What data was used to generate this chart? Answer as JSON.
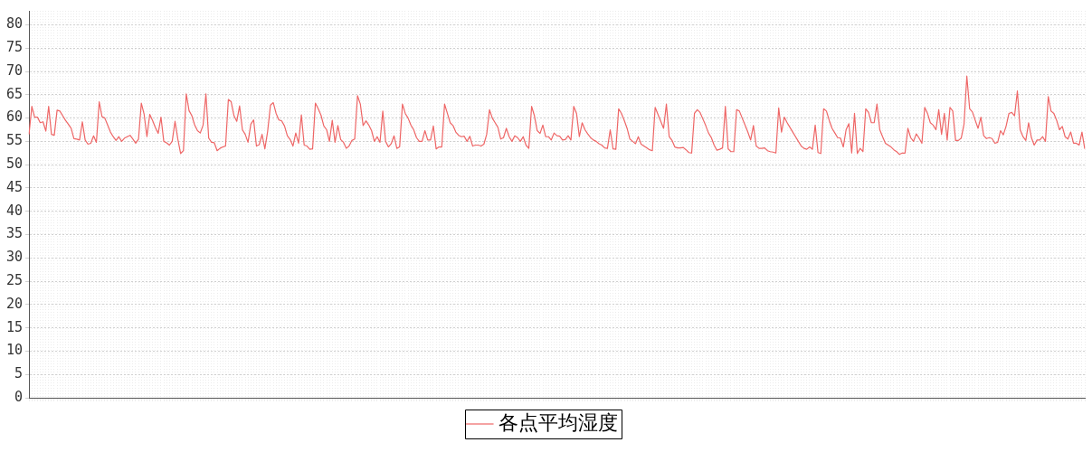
{
  "chart_data": {
    "type": "line",
    "tick_labels": "y",
    "grid": true,
    "legend": "bottom",
    "marker": "none",
    "line_style": "solid",
    "ylim": [
      0,
      83
    ],
    "yticks": [
      0,
      5,
      10,
      15,
      20,
      25,
      30,
      35,
      40,
      45,
      50,
      55,
      60,
      65,
      70,
      75,
      80
    ],
    "categories": [
      null,
      null,
      null,
      null,
      null,
      null,
      null,
      null,
      null,
      null,
      null,
      null,
      null,
      null,
      null,
      null,
      null,
      null,
      null,
      null,
      null,
      null,
      null,
      null,
      null,
      null,
      null,
      null,
      null,
      null,
      null,
      null,
      null,
      null,
      null,
      null,
      null,
      null,
      null,
      null,
      null,
      null,
      null,
      null,
      null,
      null,
      null,
      null,
      null,
      null,
      null,
      null,
      null,
      null,
      null,
      null,
      null,
      null,
      null,
      null,
      null,
      null,
      null,
      null,
      null,
      null,
      null,
      null,
      null,
      null,
      null,
      null,
      null,
      null,
      null,
      null,
      null,
      null,
      null,
      null,
      null,
      null,
      null,
      null,
      null,
      null,
      null,
      null,
      null,
      null,
      null,
      null,
      null,
      null,
      null,
      null,
      null,
      null,
      null,
      null,
      null,
      null,
      null,
      null,
      null,
      null,
      null,
      null,
      null,
      null,
      null,
      null,
      null,
      null,
      null,
      null,
      null,
      null,
      null,
      null,
      null,
      null,
      null,
      null,
      null,
      null,
      null,
      null,
      null,
      null,
      null,
      null,
      null,
      null,
      null,
      null,
      null,
      null,
      null,
      null,
      null,
      null,
      null,
      null,
      null,
      null,
      null,
      null,
      null,
      null,
      null,
      null,
      null,
      null,
      null,
      null,
      null,
      null,
      null,
      null,
      null,
      null,
      null,
      null,
      null,
      null,
      null,
      null,
      null,
      null,
      null,
      null,
      null,
      null,
      null,
      null,
      null,
      null,
      null,
      null,
      null,
      null,
      null,
      null,
      null,
      null,
      null,
      null,
      null,
      null,
      null,
      null,
      null,
      null,
      null,
      null,
      null,
      null,
      null,
      null,
      null,
      null,
      null,
      null,
      null,
      null,
      null,
      null,
      null,
      null,
      null,
      null,
      null,
      null,
      null,
      null,
      null,
      null,
      null,
      null,
      null,
      null,
      null,
      null,
      null,
      null,
      null,
      null,
      null,
      null,
      null,
      null,
      null,
      null,
      null,
      null,
      null,
      null,
      null,
      null,
      null,
      null,
      null,
      null,
      null,
      null,
      null,
      null,
      null,
      null,
      null,
      null,
      null,
      null,
      null,
      null,
      null,
      null,
      null,
      null,
      null,
      null,
      null,
      null,
      null,
      null,
      null,
      null,
      null,
      null,
      null,
      null,
      null,
      null,
      null,
      null,
      null,
      null,
      null,
      null,
      null,
      null,
      null,
      null,
      null,
      null,
      null,
      null,
      null,
      null,
      null,
      null,
      null,
      null,
      null,
      null,
      null,
      null,
      null,
      null,
      null,
      null,
      null,
      null,
      null,
      null,
      null,
      null,
      null,
      null,
      null,
      null,
      null,
      null,
      null,
      null,
      null,
      null,
      null,
      null,
      null,
      null,
      null,
      null,
      null,
      null,
      null,
      null,
      null,
      null,
      null,
      null,
      null,
      null,
      null,
      null,
      null,
      null,
      null,
      null,
      null,
      null,
      null,
      null,
      null,
      null,
      null,
      null,
      null,
      null,
      null,
      null,
      null,
      null,
      null,
      null,
      null,
      null,
      null,
      null,
      null,
      null,
      null,
      null,
      null,
      null,
      null,
      null,
      null,
      null,
      null,
      null,
      null,
      null,
      null,
      null,
      null
    ],
    "series": [
      {
        "name": "各点平均湿度",
        "color": "#ee6666",
        "values": [
          56.5,
          62.5,
          60.2,
          60.2,
          59,
          59.2,
          57.2,
          62.5,
          56.5,
          56.3,
          61.7,
          61.5,
          60.5,
          59.5,
          58.7,
          57.8,
          55.6,
          55.5,
          55.3,
          59.2,
          55.3,
          54.4,
          54.6,
          56.2,
          54.8,
          63.5,
          60.3,
          60,
          58.5,
          57,
          56,
          55.2,
          56,
          55,
          55.7,
          56,
          56.3,
          55.5,
          54.6,
          55.5,
          63.2,
          60.8,
          56,
          60.8,
          59.5,
          58,
          56.7,
          60.2,
          55,
          54.7,
          54.2,
          55,
          59.3,
          55.5,
          52.4,
          53,
          65.2,
          61.6,
          60.5,
          58.5,
          57.3,
          56.8,
          58.5,
          65.2,
          55.7,
          54.8,
          54.7,
          53,
          53.5,
          53.8,
          54,
          64,
          63.5,
          60.5,
          59.3,
          62.6,
          57.5,
          56.5,
          54.8,
          58.7,
          59.6,
          54,
          54.3,
          56.5,
          53.4,
          57.2,
          62.8,
          63.3,
          61,
          59.6,
          59.4,
          58.3,
          56.2,
          55.4,
          54,
          56.8,
          54.6,
          60.7,
          54.2,
          54,
          53.3,
          53.4,
          63.2,
          62,
          60.6,
          58.3,
          57.5,
          55,
          59.5,
          54.8,
          58.4,
          55.4,
          54.8,
          53.5,
          54,
          55.2,
          55.5,
          64.8,
          63,
          58.4,
          59.4,
          58.5,
          57.3,
          55,
          56,
          54.8,
          61.5,
          55,
          53.8,
          54.5,
          56.2,
          53.5,
          53.8,
          63,
          61,
          60,
          58.5,
          57.5,
          55.8,
          55,
          55,
          57.3,
          55.3,
          55.3,
          58.3,
          53.4,
          53.8,
          53.8,
          63,
          61,
          59,
          58.4,
          57,
          56.3,
          56,
          56.1,
          55,
          56.1,
          54,
          54.2,
          54.2,
          54,
          54.4,
          56.5,
          61.8,
          60,
          59,
          58,
          55.5,
          55.8,
          57.8,
          56,
          55,
          56.2,
          55.8,
          55,
          56,
          54.2,
          53.5,
          62.5,
          60.5,
          57.3,
          56.7,
          58.5,
          56,
          56,
          55.3,
          56.8,
          56.2,
          56.1,
          55.3,
          55.4,
          56.2,
          55.3,
          62.5,
          61,
          56,
          59,
          57.5,
          56.6,
          55.8,
          55.3,
          55,
          54.5,
          54.2,
          53.6,
          53.5,
          57.5,
          53.4,
          53.3,
          62,
          61,
          59.5,
          57.8,
          55.5,
          55,
          54.5,
          56,
          54.4,
          54,
          53.6,
          53.2,
          53,
          62.3,
          60.8,
          59.3,
          57.8,
          63,
          56,
          55.2,
          53.8,
          53.6,
          53.6,
          53.7,
          53.2,
          52.6,
          52.5,
          61,
          61.8,
          61.2,
          59.8,
          58.4,
          56.8,
          55.8,
          54.2,
          53.1,
          53.3,
          53.6,
          62.5,
          53.4,
          52.8,
          52.8,
          61.8,
          61.5,
          60,
          58.5,
          57,
          55.3,
          58.4,
          54,
          53.5,
          53.5,
          53.6,
          53,
          52.8,
          52.7,
          52.5,
          62.2,
          57,
          60.2,
          59,
          58,
          57,
          56,
          55,
          54,
          53.5,
          53.3,
          53.8,
          53.3,
          58.5,
          52.6,
          52.4,
          62,
          61.5,
          59.5,
          57.8,
          56.8,
          55.8,
          55.7,
          53.8,
          57.5,
          58.8,
          52.5,
          61,
          52.4,
          53.5,
          52.8,
          62,
          61.2,
          59,
          59,
          63,
          57.5,
          56,
          54.6,
          54.2,
          53.8,
          53.2,
          52.8,
          52.2,
          52.5,
          52.5,
          57.8,
          55.8,
          55,
          56.6,
          55.7,
          54.6,
          62.3,
          61,
          59,
          58.5,
          57.5,
          61.8,
          56.5,
          61,
          55.3,
          62.3,
          61.5,
          55.2,
          55.2,
          55.7,
          58.7,
          69,
          62,
          61.3,
          59.5,
          57.8,
          60.2,
          56.2,
          55.6,
          55.8,
          55.6,
          54.6,
          54.8,
          57.3,
          56.4,
          58.3,
          61,
          61.2,
          60.5,
          65.8,
          57.5,
          56,
          55.2,
          59,
          55.8,
          54.2,
          55.3,
          55.3,
          56,
          55,
          64.6,
          61.5,
          61,
          59.5,
          57.5,
          58.2,
          56,
          55.5,
          57,
          54.6,
          54.6,
          54.2,
          57,
          53.4
        ]
      }
    ]
  }
}
